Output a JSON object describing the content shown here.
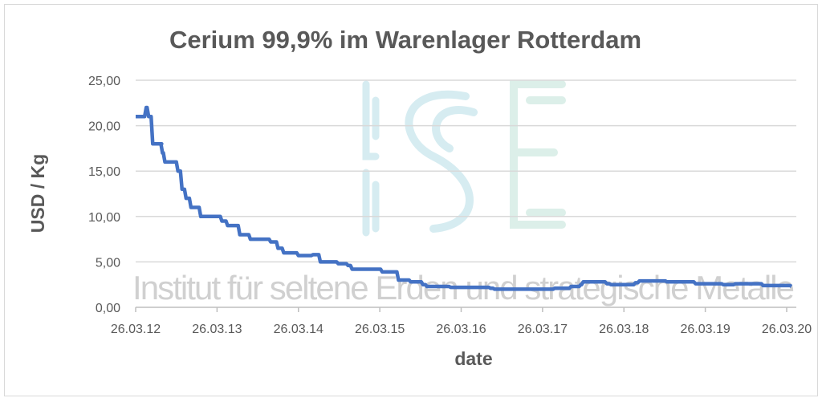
{
  "watermark": {
    "logo": "ISE",
    "text": "Institut für seltene Erden und strategische Metalle"
  },
  "chart_data": {
    "type": "line",
    "title": "Cerium 99,9% im Warenlager Rotterdam",
    "xlabel": "date",
    "ylabel": "USD / Kg",
    "ylim": [
      0,
      25
    ],
    "xlim": [
      0,
      8
    ],
    "x_unit": "years since 26.03.12",
    "yticks": [
      {
        "v": 0,
        "label": "0,00"
      },
      {
        "v": 5,
        "label": "5,00"
      },
      {
        "v": 10,
        "label": "10,00"
      },
      {
        "v": 15,
        "label": "15,00"
      },
      {
        "v": 20,
        "label": "20,00"
      },
      {
        "v": 25,
        "label": "25,00"
      }
    ],
    "xticks": [
      {
        "v": 0,
        "label": "26.03.12"
      },
      {
        "v": 1,
        "label": "26.03.13"
      },
      {
        "v": 2,
        "label": "26.03.14"
      },
      {
        "v": 3,
        "label": "26.03.15"
      },
      {
        "v": 4,
        "label": "26.03.16"
      },
      {
        "v": 5,
        "label": "26.03.17"
      },
      {
        "v": 6,
        "label": "26.03.18"
      },
      {
        "v": 7,
        "label": "26.03.19"
      },
      {
        "v": 8,
        "label": "26.03.20"
      }
    ],
    "grid": true,
    "legend": "none",
    "line_color": "#4472c4",
    "series": [
      {
        "name": "Cerium 99,9%",
        "x": [
          0,
          0.08,
          0.11,
          0.14,
          0.19,
          0.3,
          0.31,
          0.34,
          0.48,
          0.5,
          0.55,
          0.6,
          0.66,
          0.78,
          1.01,
          1.04,
          1.11,
          1.22,
          1.26,
          1.36,
          1.39,
          1.58,
          1.64,
          1.73,
          1.8,
          1.98,
          2.16,
          2.25,
          2.37,
          2.47,
          2.59,
          2.64,
          2.97,
          3.01,
          3.16,
          3.21,
          3.36,
          3.51,
          3.56,
          3.85,
          4.34,
          4.39,
          4.94,
          5.13,
          5.33,
          5.45,
          5.48,
          5.77,
          5.82,
          6.12,
          6.17,
          6.41,
          6.51,
          6.81,
          6.86,
          7.2,
          7.35,
          7.69,
          8.04
        ],
        "y": [
          21,
          21,
          22,
          21,
          18,
          18,
          17,
          16,
          16,
          15,
          13,
          12,
          11,
          10,
          10,
          9.5,
          9,
          9,
          8,
          8,
          7.5,
          7.5,
          7.2,
          6.5,
          6,
          5.7,
          5.8,
          5,
          5,
          4.8,
          4.6,
          4.2,
          4.2,
          3.9,
          3.9,
          3.0,
          2.8,
          2.5,
          2.3,
          2.2,
          2.1,
          2.0,
          2.0,
          2.1,
          2.3,
          2.5,
          2.8,
          2.6,
          2.5,
          2.7,
          2.9,
          2.9,
          2.8,
          2.8,
          2.6,
          2.5,
          2.6,
          2.4,
          2.3
        ]
      }
    ]
  }
}
